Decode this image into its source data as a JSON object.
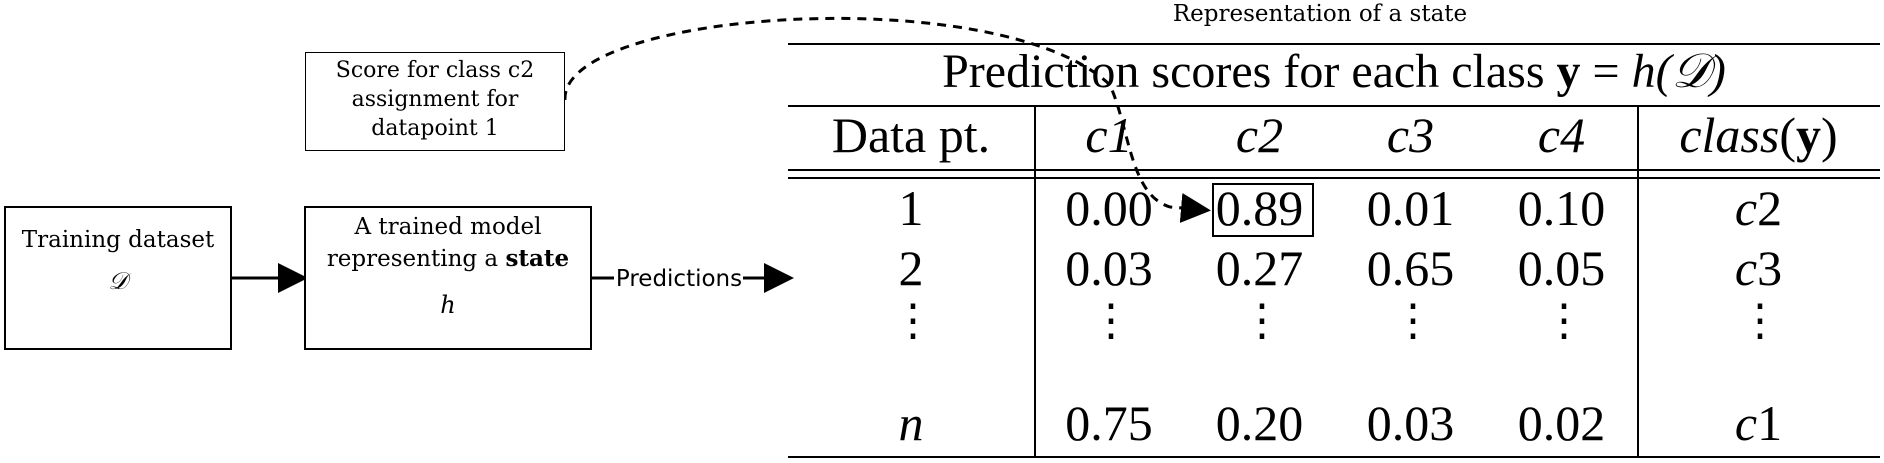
{
  "callout": {
    "line1": "Score for class c2",
    "line2": "assignment for",
    "line3": "datapoint 1"
  },
  "training": {
    "title": "Training dataset",
    "symbol": "𝒟"
  },
  "model": {
    "line1": "A trained model",
    "line2_prefix": "representing a ",
    "line2_bold": "state",
    "symbol": "h"
  },
  "edge_label": "Predictions",
  "state_label": "Representation of a state",
  "table": {
    "title_text": "Prediction scores for each class ",
    "title_y": "y",
    "title_eq": " = ",
    "title_h": "h",
    "title_D": "(𝒟)",
    "col_data": "Data pt.",
    "col_class_fn": "class",
    "col_class_arg": "(y)",
    "class_cols": [
      {
        "letter": "c",
        "num": "1"
      },
      {
        "letter": "c",
        "num": "2"
      },
      {
        "letter": "c",
        "num": "3"
      },
      {
        "letter": "c",
        "num": "4"
      }
    ],
    "rows": [
      {
        "pt": "1",
        "scores": [
          "0.00",
          "0.89",
          "0.01",
          "0.10"
        ],
        "cls_letter": "c",
        "cls_num": "2"
      },
      {
        "pt": "2",
        "scores": [
          "0.03",
          "0.27",
          "0.65",
          "0.05"
        ],
        "cls_letter": "c",
        "cls_num": "3"
      },
      {
        "pt": "n",
        "scores": [
          "0.75",
          "0.20",
          "0.03",
          "0.02"
        ],
        "cls_letter": "c",
        "cls_num": "1"
      }
    ],
    "ellipsis": "⋮"
  }
}
